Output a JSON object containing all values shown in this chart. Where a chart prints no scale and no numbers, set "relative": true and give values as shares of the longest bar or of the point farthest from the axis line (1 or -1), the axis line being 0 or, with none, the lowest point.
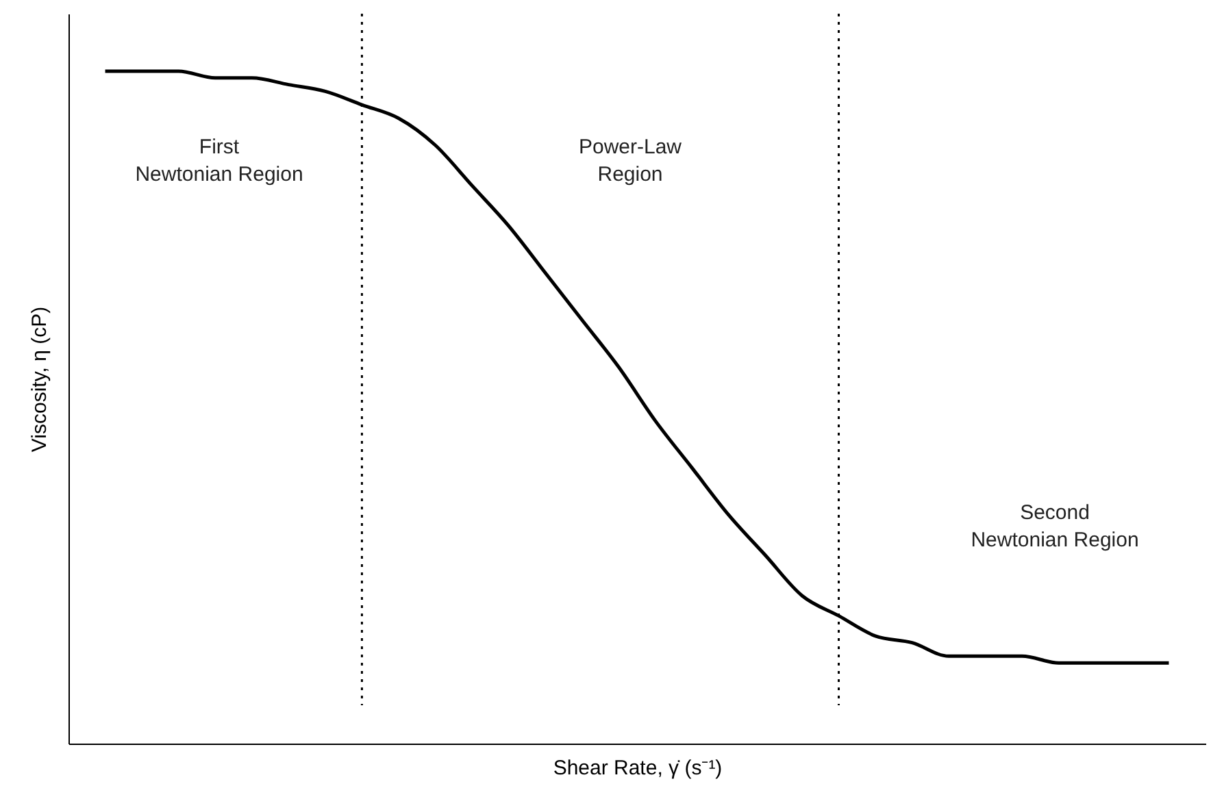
{
  "chart_data": {
    "type": "line",
    "relative": true,
    "xlabel": "Shear Rate, γ̇ (s⁻¹)",
    "ylabel": "Viscosity, η (cP)",
    "categories": [
      null,
      null,
      null,
      null,
      null,
      null,
      null,
      null,
      null,
      null,
      null,
      null,
      null,
      null,
      null,
      null,
      null,
      null,
      null,
      null,
      null,
      null,
      null,
      null,
      null,
      null,
      null,
      null,
      null,
      null
    ],
    "series": [
      {
        "color": "#000000",
        "values": [
          1.0,
          1.0,
          1.0,
          0.99,
          0.99,
          0.98,
          0.97,
          0.95,
          0.93,
          0.89,
          0.83,
          0.77,
          0.7,
          0.63,
          0.56,
          0.48,
          0.41,
          0.34,
          0.28,
          0.22,
          0.19,
          0.16,
          0.15,
          0.13,
          0.13,
          0.13,
          0.12,
          0.12,
          0.12,
          0.12
        ]
      }
    ],
    "annotations": [
      "First\nNewtonian Region",
      "Power-Law\nRegion",
      "Second\nNewtonian Region"
    ],
    "grid": false,
    "marker": "none",
    "line_style": "solid"
  }
}
